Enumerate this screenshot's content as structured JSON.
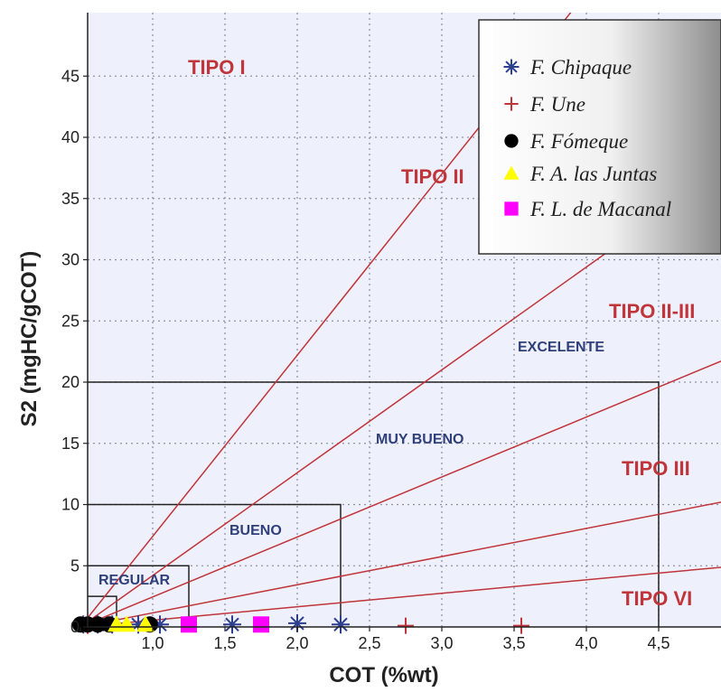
{
  "chart_data": {
    "type": "scatter",
    "title": "",
    "xlabel": "COT (%wt)",
    "ylabel": "S2 (mgHC/gCOT)",
    "xlim": [
      0,
      5.0
    ],
    "ylim": [
      0,
      50
    ],
    "x_ticks": [
      0.5,
      1.0,
      1.5,
      2.0,
      2.5,
      3.0,
      3.5,
      4.0,
      4.5
    ],
    "x_tick_labels": [
      "",
      "1,0",
      "1,5",
      "2,0",
      "2,5",
      "3,0",
      "3,5",
      "4,0",
      "4,5"
    ],
    "y_ticks": [
      0,
      5,
      10,
      15,
      20,
      25,
      30,
      35,
      40,
      45
    ],
    "y_tick_labels": [
      "0",
      "5",
      "10",
      "15",
      "20",
      "25",
      "30",
      "35",
      "40",
      "45"
    ],
    "grid": true,
    "legend_position": "top-right",
    "series": [
      {
        "name": "F. Chipaque",
        "marker": "asterisk",
        "color": "#2d3f8f",
        "x": [
          0.52,
          0.62,
          0.72,
          0.9,
          1.05,
          1.55,
          2.0,
          2.3
        ],
        "y": [
          0.2,
          0.2,
          0.2,
          0.2,
          0.2,
          0.2,
          0.3,
          0.2
        ]
      },
      {
        "name": "F. Une",
        "marker": "plus",
        "color": "#c0343a",
        "x": [
          0.55,
          2.75,
          3.55
        ],
        "y": [
          0.1,
          0.1,
          0.1
        ]
      },
      {
        "name": "F. Fómeque",
        "marker": "circle",
        "color": "#000000",
        "x": [
          0.5,
          0.55,
          0.62,
          0.7,
          0.98
        ],
        "y": [
          0.2,
          0.2,
          0.2,
          0.2,
          0.2
        ]
      },
      {
        "name": "F. A. las Juntas",
        "marker": "triangle",
        "color": "#ffff00",
        "x": [
          0.75,
          0.82,
          0.95
        ],
        "y": [
          0.2,
          0.2,
          0.2
        ]
      },
      {
        "name": "F. L. de Macanal",
        "marker": "square",
        "color": "#ff00ff",
        "x": [
          1.25,
          1.75
        ],
        "y": [
          0.2,
          0.2
        ]
      }
    ],
    "type_lines": [
      {
        "name": "I",
        "slope": 14.8
      },
      {
        "name": "II",
        "slope": 8.4
      },
      {
        "name": "II-III",
        "slope": 4.9
      },
      {
        "name": "III",
        "slope": 2.3
      },
      {
        "name": "VI",
        "slope": 1.1
      }
    ],
    "quality_boxes": [
      {
        "name": "REGULAR",
        "x_max": 1.25,
        "y_max": 5
      },
      {
        "name": "BUENO",
        "x_max": 2.3,
        "y_max": 10
      },
      {
        "name": "MUY BUENO",
        "x_max": 4.5,
        "y_max": 20
      },
      {
        "name": "small",
        "x_max": 0.75,
        "y_max": 2.5
      }
    ],
    "annotations": {
      "tipo_i": "TIPO I",
      "tipo_ii": "TIPO II",
      "tipo_ii_iii": "TIPO II-III",
      "tipo_iii": "TIPO III",
      "tipo_vi": "TIPO VI",
      "regular": "REGULAR",
      "bueno": "BUENO",
      "muy_bueno": "MUY BUENO",
      "excelente": "EXCELENTE"
    },
    "colors": {
      "plot_background": "#eef0fb",
      "type_line": "#c0343a",
      "box_line": "#222222"
    }
  }
}
